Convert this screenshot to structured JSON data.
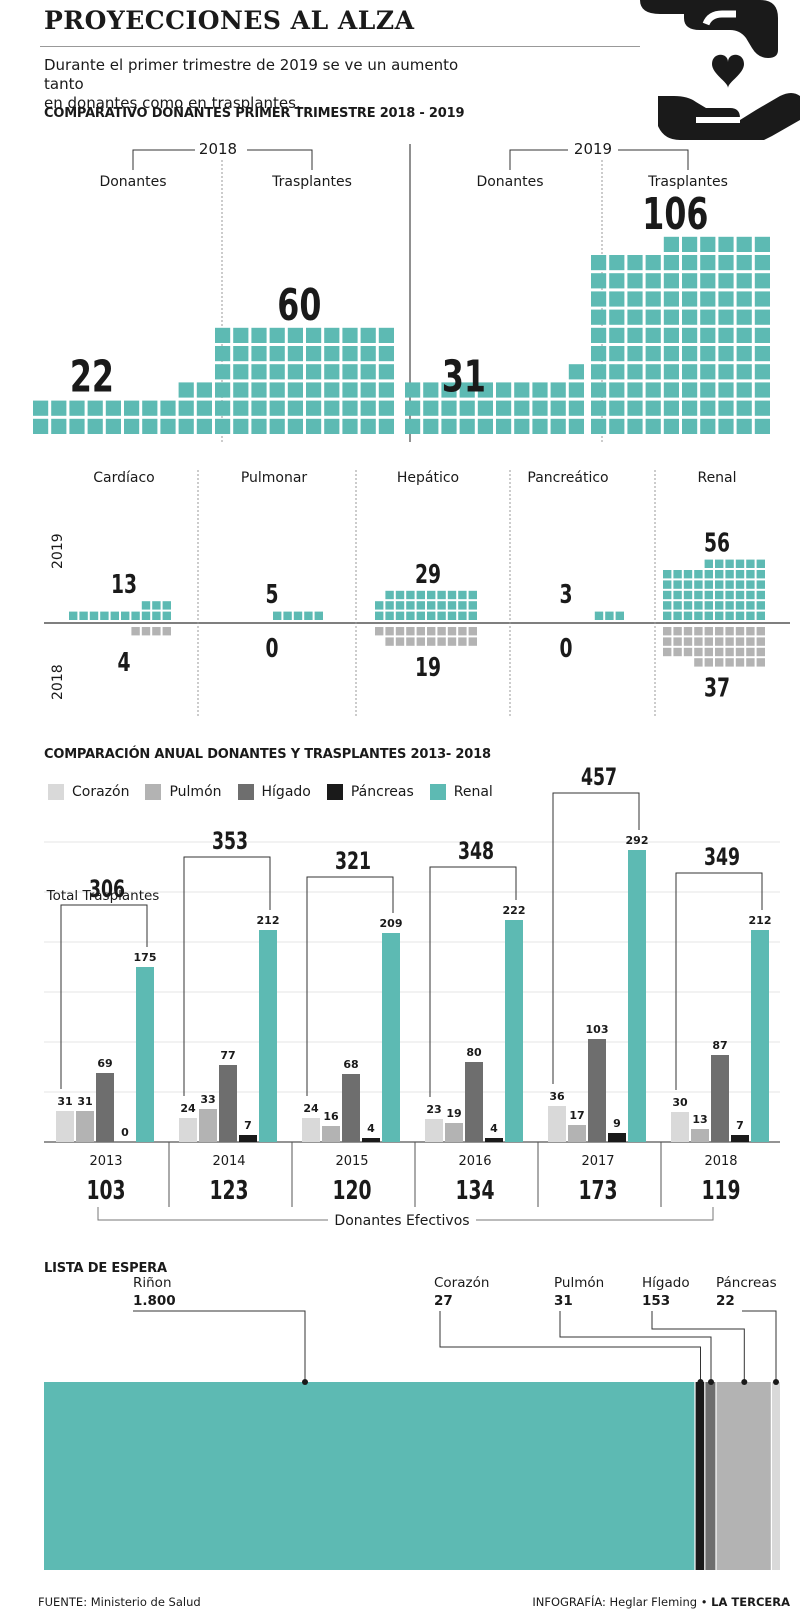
{
  "header": {
    "title": "PROYECCIONES AL ALZA",
    "subtitle_line1": "Durante el primer trimestre de 2019 se ve un aumento tanto",
    "subtitle_line2": "en donantes como en trasplantes."
  },
  "colors": {
    "teal": "#5dbab3",
    "light_gray": "#d9d9d9",
    "mid_gray": "#b3b3b3",
    "dark_gray": "#6e6e6e",
    "black": "#1a1a1a"
  },
  "icon": {
    "name": "hand-heart-icon"
  },
  "chart_data": [
    {
      "type": "bar",
      "title": "COMPARATIVO DONANTES PRIMER TRIMESTRE 2018 - 2019",
      "groups": [
        "2018",
        "2019"
      ],
      "categories": [
        "Donantes",
        "Trasplantes"
      ],
      "series": [
        {
          "name": "2018",
          "values": [
            22,
            60
          ]
        },
        {
          "name": "2019",
          "values": [
            31,
            106
          ]
        }
      ]
    },
    {
      "type": "bar",
      "categories": [
        "Cardíaco",
        "Pulmonar",
        "Hepático",
        "Pancreático",
        "Renal"
      ],
      "series": [
        {
          "name": "2019",
          "values": [
            13,
            5,
            29,
            3,
            56
          ]
        },
        {
          "name": "2018",
          "values": [
            4,
            0,
            19,
            0,
            37
          ]
        }
      ]
    },
    {
      "type": "bar",
      "title": "COMPARACIÓN  ANUAL DONANTES Y TRASPLANTES 2013- 2018",
      "categories": [
        "2013",
        "2014",
        "2015",
        "2016",
        "2017",
        "2018"
      ],
      "series": [
        {
          "name": "Corazón",
          "values": [
            31,
            24,
            24,
            23,
            36,
            30
          ]
        },
        {
          "name": "Pulmón",
          "values": [
            31,
            33,
            16,
            19,
            17,
            13
          ]
        },
        {
          "name": "Hígado",
          "values": [
            69,
            77,
            68,
            80,
            103,
            87
          ]
        },
        {
          "name": "Páncreas",
          "values": [
            0,
            7,
            4,
            4,
            9,
            7
          ]
        },
        {
          "name": "Renal",
          "values": [
            175,
            212,
            209,
            222,
            292,
            212
          ]
        }
      ],
      "totals": [
        306,
        353,
        321,
        348,
        457,
        349
      ],
      "totals_label": "Total Trasplantes",
      "donors": [
        103,
        123,
        120,
        134,
        173,
        119
      ],
      "donors_label": "Donantes Efectivos",
      "ylim": [
        0,
        300
      ],
      "grid": true
    },
    {
      "type": "bar",
      "title": "LISTA DE ESPERA",
      "categories": [
        "Riñon",
        "Corazón",
        "Pulmón",
        "Hígado",
        "Páncreas"
      ],
      "values": [
        1800,
        27,
        31,
        153,
        22
      ],
      "value_labels": [
        "1.800",
        "27",
        "31",
        "153",
        "22"
      ]
    }
  ],
  "footer": {
    "source_label": "FUENTE:",
    "source": " Ministerio de Salud",
    "credit_label": "INFOGRAFÍA:",
    "credit": " Heglar Fleming • ",
    "brand": "LA TERCERA"
  }
}
